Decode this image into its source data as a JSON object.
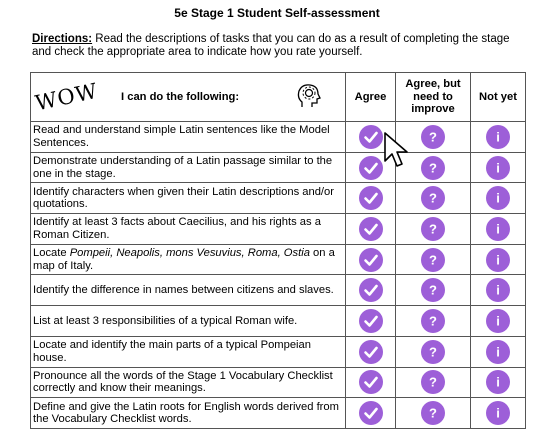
{
  "title": "5e Stage 1 Student Self-assessment",
  "directions": {
    "label": "Directions:",
    "text": "Read the descriptions of tasks that you can do as a result of completing the stage and check the appropriate area to indicate how you rate yourself."
  },
  "table": {
    "wow": "WOW",
    "header": [
      "I can do the following:",
      "Agree",
      "Agree, but need to improve",
      "Not yet"
    ],
    "icons": {
      "question": "?",
      "info": "i"
    },
    "rows": [
      [
        "Read and understand simple Latin sentences like the Model Sentences."
      ],
      [
        "Demonstrate understanding of a Latin passage similar to the one in the stage."
      ],
      [
        "Identify characters when given their Latin descriptions and/or quotations."
      ],
      [
        "Identify at least 3 facts about Caecilius, and his rights as a Roman Citizen."
      ],
      [
        "Locate ",
        "Pompeii, Neapolis, mons Vesuvius, Roma, Ostia",
        " on a map of Italy."
      ],
      [
        "Identify the difference in names between citizens and slaves."
      ],
      [
        "List at least 3 responsibilities of a typical Roman wife."
      ],
      [
        "Locate and identify the main parts of a typical Pompeian house."
      ],
      [
        "Pronounce all the words of the Stage 1 Vocabulary Checklist correctly and know their meanings."
      ],
      [
        "Define and give the Latin roots for English words derived from the Vocabulary Checklist words."
      ]
    ]
  }
}
